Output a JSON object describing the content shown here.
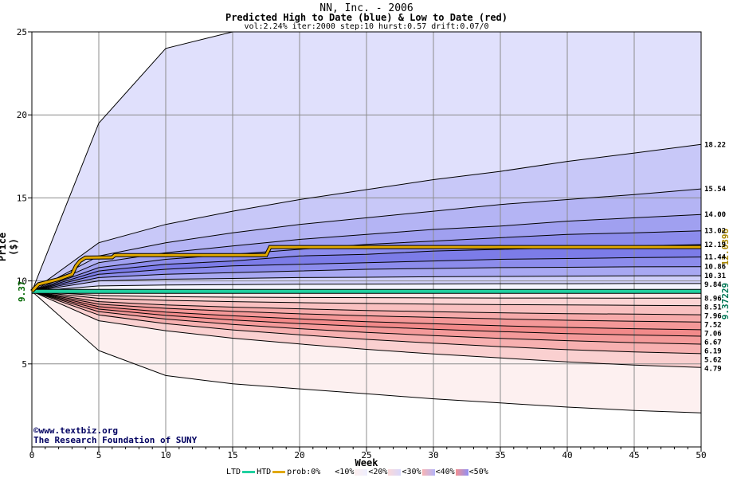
{
  "chart_data": {
    "type": "area",
    "title": "NN, Inc. - 2006",
    "subtitle": "Predicted High to Date (blue) &  Low to Date (red)",
    "params": "vol:2.24% iter:2000 step:10 hurst:0.57 drift:0.07/0",
    "xlabel": "Week",
    "ylabel": "Price ($)",
    "xlim": [
      0,
      50
    ],
    "ylim": [
      0,
      25
    ],
    "xticks": [
      0,
      5,
      10,
      15,
      20,
      25,
      30,
      35,
      40,
      45,
      50
    ],
    "yticks": [
      5,
      10,
      15,
      20,
      25
    ],
    "grid": true,
    "start_price": 9.37,
    "start_label": "9.37",
    "right_labels": [
      "9.37229",
      "12.0396"
    ],
    "bands": {
      "x": [
        0,
        5,
        10,
        15,
        20,
        25,
        30,
        35,
        40,
        45,
        50
      ],
      "upper": [
        {
          "label": "",
          "values": [
            9.37,
            19.5,
            24.0,
            26.0,
            26.0,
            26.0,
            26.0,
            26.0,
            26.0,
            26.0,
            26.0
          ]
        },
        {
          "label": "18.22",
          "values": [
            9.37,
            12.3,
            13.4,
            14.2,
            14.9,
            15.5,
            16.1,
            16.6,
            17.2,
            17.7,
            18.22
          ]
        },
        {
          "label": "15.54",
          "values": [
            9.37,
            11.5,
            12.3,
            12.9,
            13.4,
            13.8,
            14.2,
            14.6,
            14.9,
            15.2,
            15.54
          ]
        },
        {
          "label": "14.00",
          "values": [
            9.37,
            11.1,
            11.7,
            12.1,
            12.5,
            12.8,
            13.1,
            13.3,
            13.6,
            13.8,
            14.0
          ]
        },
        {
          "label": "13.02",
          "values": [
            9.37,
            10.8,
            11.3,
            11.6,
            11.9,
            12.2,
            12.4,
            12.6,
            12.8,
            12.9,
            13.02
          ]
        },
        {
          "label": "12.19",
          "values": [
            9.37,
            10.6,
            11.0,
            11.2,
            11.5,
            11.6,
            11.8,
            11.9,
            12.0,
            12.1,
            12.19
          ]
        },
        {
          "label": "11.44",
          "values": [
            9.37,
            10.4,
            10.7,
            10.9,
            11.0,
            11.1,
            11.2,
            11.3,
            11.35,
            11.4,
            11.44
          ]
        },
        {
          "label": "10.86",
          "values": [
            9.37,
            10.2,
            10.4,
            10.5,
            10.6,
            10.7,
            10.75,
            10.8,
            10.82,
            10.85,
            10.86
          ]
        },
        {
          "label": "10.31",
          "values": [
            9.37,
            10.0,
            10.1,
            10.15,
            10.2,
            10.22,
            10.25,
            10.27,
            10.29,
            10.3,
            10.31
          ]
        },
        {
          "label": "9.84",
          "values": [
            9.37,
            9.7,
            9.75,
            9.78,
            9.8,
            9.81,
            9.82,
            9.83,
            9.83,
            9.84,
            9.84
          ]
        }
      ],
      "lower": [
        {
          "label": "8.96",
          "values": [
            9.37,
            9.12,
            9.05,
            9.02,
            9.0,
            8.99,
            8.98,
            8.97,
            8.97,
            8.96,
            8.96
          ]
        },
        {
          "label": "8.51",
          "values": [
            9.37,
            8.95,
            8.83,
            8.75,
            8.69,
            8.64,
            8.6,
            8.57,
            8.55,
            8.53,
            8.51
          ]
        },
        {
          "label": "7.96",
          "values": [
            9.37,
            8.75,
            8.55,
            8.42,
            8.32,
            8.22,
            8.15,
            8.08,
            8.03,
            8.0,
            7.96
          ]
        },
        {
          "label": "7.52",
          "values": [
            9.37,
            8.6,
            8.35,
            8.17,
            8.02,
            7.9,
            7.8,
            7.71,
            7.63,
            7.57,
            7.52
          ]
        },
        {
          "label": "7.06",
          "values": [
            9.37,
            8.45,
            8.12,
            7.9,
            7.71,
            7.55,
            7.42,
            7.3,
            7.2,
            7.12,
            7.06
          ]
        },
        {
          "label": "6.67",
          "values": [
            9.37,
            8.3,
            7.92,
            7.65,
            7.43,
            7.25,
            7.09,
            6.95,
            6.83,
            6.74,
            6.67
          ]
        },
        {
          "label": "6.19",
          "values": [
            9.37,
            8.15,
            7.7,
            7.38,
            7.12,
            6.9,
            6.71,
            6.54,
            6.4,
            6.28,
            6.19
          ]
        },
        {
          "label": "5.62",
          "values": [
            9.37,
            7.95,
            7.43,
            7.05,
            6.75,
            6.48,
            6.25,
            6.04,
            5.86,
            5.72,
            5.62
          ]
        },
        {
          "label": "4.79",
          "values": [
            9.37,
            7.6,
            7.0,
            6.55,
            6.2,
            5.88,
            5.6,
            5.36,
            5.12,
            4.93,
            4.79
          ]
        },
        {
          "label": "",
          "values": [
            9.37,
            5.8,
            4.3,
            3.8,
            3.5,
            3.2,
            2.9,
            2.65,
            2.4,
            2.2,
            2.05
          ]
        }
      ]
    },
    "series": [
      {
        "name": "LTD",
        "color": "#20d0a0",
        "x": [
          0,
          50
        ],
        "values": [
          9.37229,
          9.37229
        ]
      },
      {
        "name": "HTD",
        "color": "#e0a800",
        "x": [
          0,
          0.5,
          1,
          1.5,
          2,
          2.5,
          3,
          3.3,
          3.6,
          4,
          6,
          6.2,
          17.5,
          17.8,
          25,
          50
        ],
        "values": [
          9.37,
          9.8,
          9.9,
          10.0,
          10.1,
          10.25,
          10.4,
          10.9,
          11.2,
          11.4,
          11.42,
          11.55,
          11.55,
          12.04,
          12.04,
          12.04
        ]
      }
    ]
  },
  "legend": {
    "ltd": "LTD",
    "htd": "HTD",
    "prob_prefix": "prob:0%",
    "buckets": [
      "<10%",
      "<20%",
      "<30%",
      "<40%",
      "<50%"
    ]
  },
  "credits": {
    "copyright_line": "©www.textbiz.org",
    "org_line": "The Research Foundation of SUNY"
  }
}
